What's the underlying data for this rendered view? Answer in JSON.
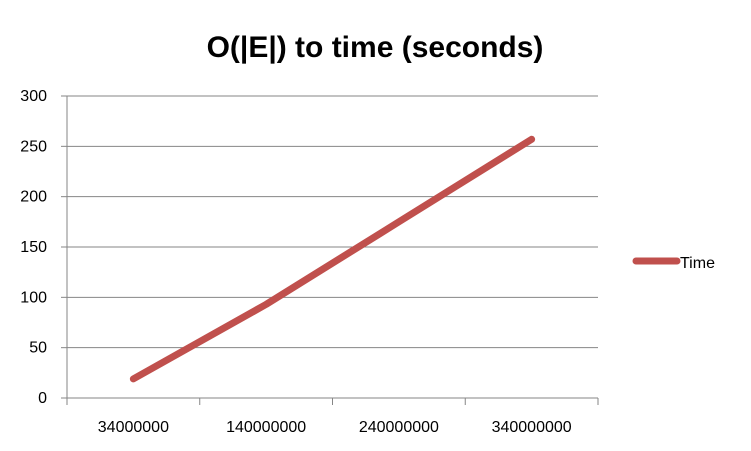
{
  "chart_data": {
    "type": "line",
    "title": "O(|E|) to time (seconds)",
    "xlabel": "",
    "ylabel": "",
    "categories": [
      "34000000",
      "140000000",
      "240000000",
      "340000000"
    ],
    "series": [
      {
        "name": "Time",
        "color": "#C0504D",
        "values": [
          19,
          93,
          175,
          257
        ]
      }
    ],
    "ylim": [
      0,
      300
    ],
    "yticks": [
      0,
      50,
      100,
      150,
      200,
      250,
      300
    ],
    "grid": true,
    "legend_position": "right",
    "colors": {
      "gridline": "#868686",
      "axis": "#868686"
    }
  }
}
